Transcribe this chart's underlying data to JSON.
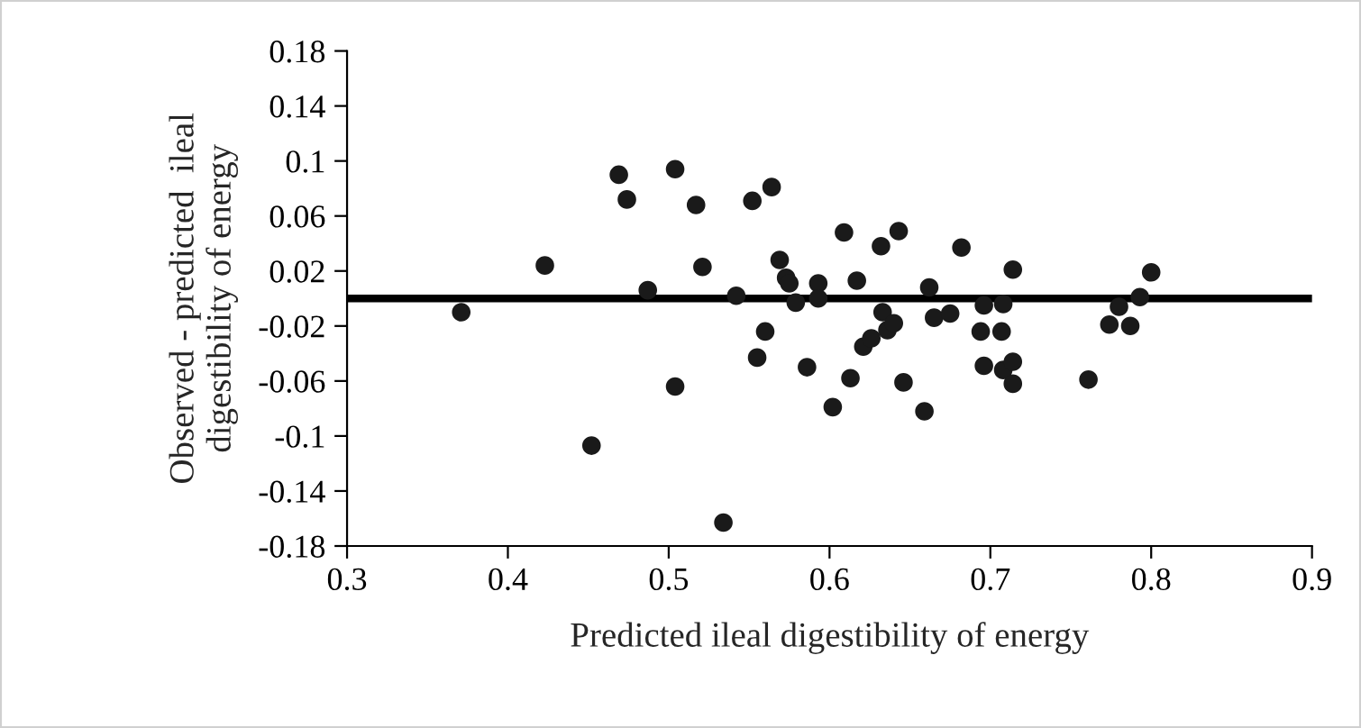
{
  "chart_data": {
    "type": "scatter",
    "xlabel": "Predicted ileal digestibility of energy",
    "ylabel": "Observed - predicted  ileal\ndigestibility of energy",
    "x": [
      0.371,
      0.423,
      0.452,
      0.469,
      0.474,
      0.487,
      0.504,
      0.504,
      0.517,
      0.521,
      0.534,
      0.542,
      0.552,
      0.564,
      0.555,
      0.56,
      0.569,
      0.573,
      0.575,
      0.579,
      0.586,
      0.593,
      0.593,
      0.602,
      0.609,
      0.613,
      0.617,
      0.621,
      0.626,
      0.632,
      0.633,
      0.636,
      0.64,
      0.643,
      0.646,
      0.659,
      0.662,
      0.665,
      0.675,
      0.682,
      0.694,
      0.696,
      0.696,
      0.707,
      0.708,
      0.708,
      0.714,
      0.714,
      0.714,
      0.761,
      0.774,
      0.78,
      0.787,
      0.793,
      0.8
    ],
    "series": [
      {
        "color": "#1a1a1a",
        "values": [
          -0.01,
          0.024,
          -0.107,
          0.09,
          0.072,
          0.006,
          0.094,
          -0.064,
          0.068,
          0.023,
          -0.163,
          0.002,
          0.071,
          0.081,
          -0.043,
          -0.024,
          0.028,
          0.015,
          0.011,
          -0.003,
          -0.05,
          0.011,
          0.0,
          -0.079,
          0.048,
          -0.058,
          0.013,
          -0.035,
          -0.029,
          0.038,
          -0.01,
          -0.023,
          -0.018,
          0.049,
          -0.061,
          -0.082,
          0.008,
          -0.014,
          -0.011,
          0.037,
          -0.024,
          -0.049,
          -0.005,
          -0.024,
          -0.004,
          -0.052,
          0.021,
          -0.046,
          -0.062,
          -0.059,
          -0.019,
          -0.006,
          -0.02,
          0.001,
          0.019
        ]
      }
    ],
    "xlim": [
      0.3,
      0.9
    ],
    "xticks": [
      0.3,
      0.4,
      0.5,
      0.6,
      0.7,
      0.8,
      0.9
    ],
    "ylim": [
      -0.18,
      0.18
    ],
    "yticks": [
      -0.18,
      -0.14,
      -0.1,
      -0.06,
      -0.02,
      0.02,
      0.06,
      0.1,
      0.14,
      0.18
    ],
    "ref_lines": [
      {
        "axis": "y",
        "value": 0,
        "color": "#000000",
        "line_style": "solid"
      }
    ],
    "marker": "circle",
    "grid": false,
    "legend": false
  }
}
